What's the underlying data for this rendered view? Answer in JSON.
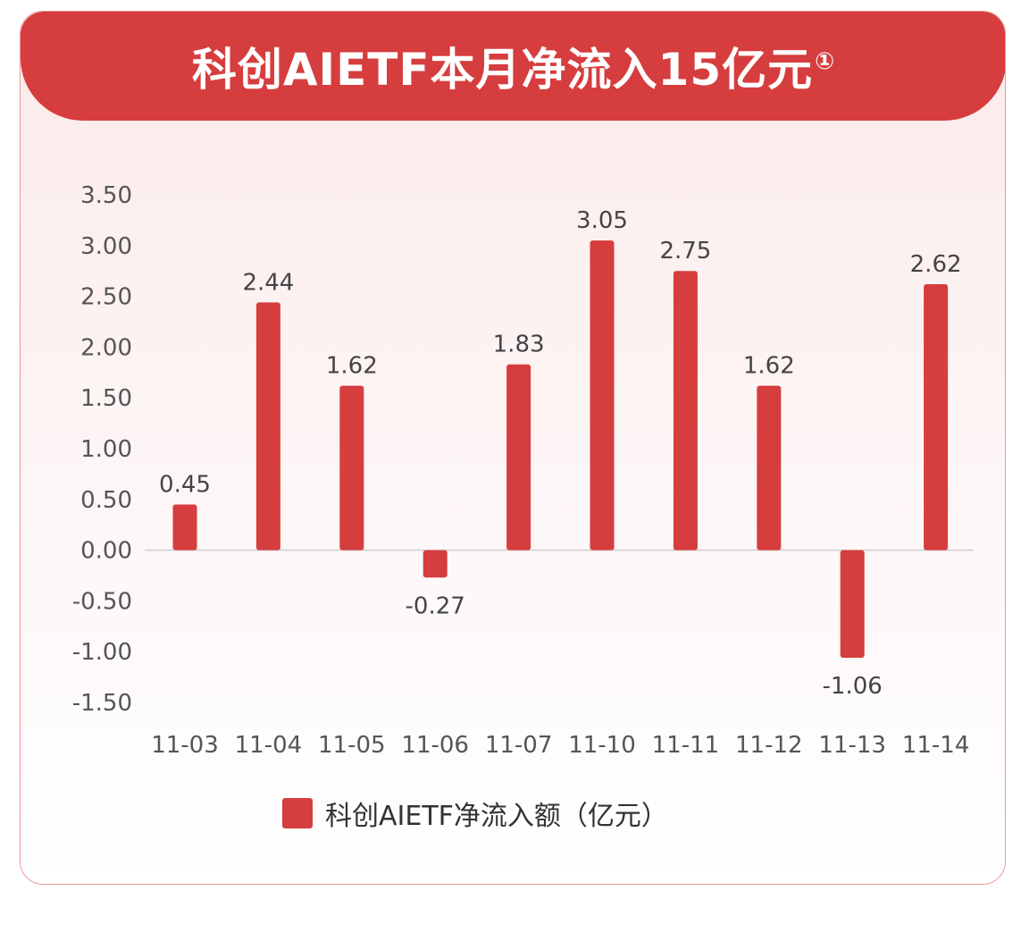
{
  "header": {
    "title": "科创AIETF本月净流入15亿元",
    "note_mark": "①"
  },
  "chart_data": {
    "type": "bar",
    "categories": [
      "11-03",
      "11-04",
      "11-05",
      "11-06",
      "11-07",
      "11-10",
      "11-11",
      "11-12",
      "11-13",
      "11-14"
    ],
    "series": [
      {
        "name": "科创AIETF净流入额（亿元）",
        "values": [
          0.45,
          2.44,
          1.62,
          -0.27,
          1.83,
          3.05,
          2.75,
          1.62,
          -1.06,
          2.62
        ],
        "color": "#d63d3e"
      }
    ],
    "value_labels": [
      "0.45",
      "2.44",
      "1.62",
      "-0.27",
      "1.83",
      "3.05",
      "2.75",
      "1.62",
      "-1.06",
      "2.62"
    ],
    "y_ticks": [
      "3.50",
      "3.00",
      "2.50",
      "2.00",
      "1.50",
      "1.00",
      "0.50",
      "0.00",
      "-0.50",
      "-1.00",
      "-1.50"
    ],
    "ylim": [
      -1.5,
      3.5
    ],
    "grid": false,
    "legend_position": "bottom-center",
    "title": "",
    "xlabel": "",
    "ylabel": ""
  },
  "legend": {
    "label": "科创AIETF净流入额（亿元）",
    "color": "#d63d3e"
  }
}
